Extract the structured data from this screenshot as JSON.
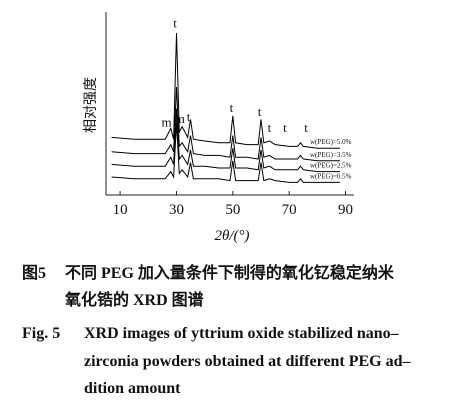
{
  "chart_data": {
    "type": "line",
    "ylabel": "相对强度",
    "xlabel": "2θ/(°)",
    "xlim": [
      5,
      93
    ],
    "ylim": [
      0,
      100
    ],
    "xticks": [
      10,
      30,
      50,
      70,
      90
    ],
    "x": [
      7,
      15,
      22,
      26,
      28,
      29,
      30,
      31,
      32,
      34,
      35,
      36,
      40,
      45,
      49,
      50,
      51,
      55,
      59,
      60,
      61,
      63,
      65,
      70,
      73,
      74,
      75,
      80,
      85,
      88
    ],
    "series": [
      {
        "name": "w(PEG)=5.0%",
        "color": "#000000",
        "values": [
          32,
          31,
          31,
          31,
          37,
          31,
          90,
          35,
          38,
          32,
          42,
          31,
          30,
          29,
          29,
          44,
          29,
          28,
          28,
          42,
          29,
          30,
          28,
          27,
          27,
          29,
          27,
          26,
          26,
          26
        ]
      },
      {
        "name": "w(PEG)=3.5%",
        "color": "#000000",
        "values": [
          24,
          23,
          23,
          23,
          28,
          24,
          60,
          27,
          29,
          24,
          33,
          23,
          22,
          22,
          21,
          33,
          21,
          21,
          20,
          32,
          21,
          22,
          20,
          20,
          20,
          22,
          20,
          19,
          19,
          19
        ]
      },
      {
        "name": "w(PEG)=2.5%",
        "color": "#000000",
        "values": [
          17,
          16,
          16,
          16,
          21,
          17,
          48,
          20,
          22,
          17,
          25,
          16,
          16,
          15,
          15,
          26,
          15,
          15,
          14,
          25,
          15,
          16,
          14,
          14,
          14,
          16,
          14,
          13,
          13,
          13
        ]
      },
      {
        "name": "w(PEG)=0.5%",
        "color": "#000000",
        "values": [
          10,
          9,
          9,
          9,
          13,
          10,
          40,
          12,
          14,
          10,
          18,
          9,
          9,
          9,
          8,
          19,
          8,
          8,
          8,
          18,
          8,
          9,
          8,
          7,
          7,
          9,
          7,
          7,
          7,
          7
        ]
      }
    ],
    "annotations": [
      {
        "text": "t",
        "x": 29.5,
        "y": 93
      },
      {
        "text": "m",
        "x": 26.5,
        "y": 38
      },
      {
        "text": "m",
        "x": 31.2,
        "y": 40
      },
      {
        "text": "t",
        "x": 34.3,
        "y": 41
      },
      {
        "text": "t",
        "x": 49.5,
        "y": 46
      },
      {
        "text": "t",
        "x": 59.5,
        "y": 44
      },
      {
        "text": "t",
        "x": 63,
        "y": 35
      },
      {
        "text": "t",
        "x": 68.5,
        "y": 35
      },
      {
        "text": "t",
        "x": 76,
        "y": 35
      }
    ]
  },
  "caption": {
    "cn_label": "图5",
    "cn_lines": [
      "不同 PEG 加入量条件下制得的氧化钇稳定纳米",
      "氧化锆的 XRD 图谱"
    ],
    "en_label": "Fig. 5",
    "en_lines": [
      "XRD images of yttrium oxide stabilized nano–",
      "zirconia powders obtained at different PEG ad–",
      "dition amount"
    ]
  }
}
